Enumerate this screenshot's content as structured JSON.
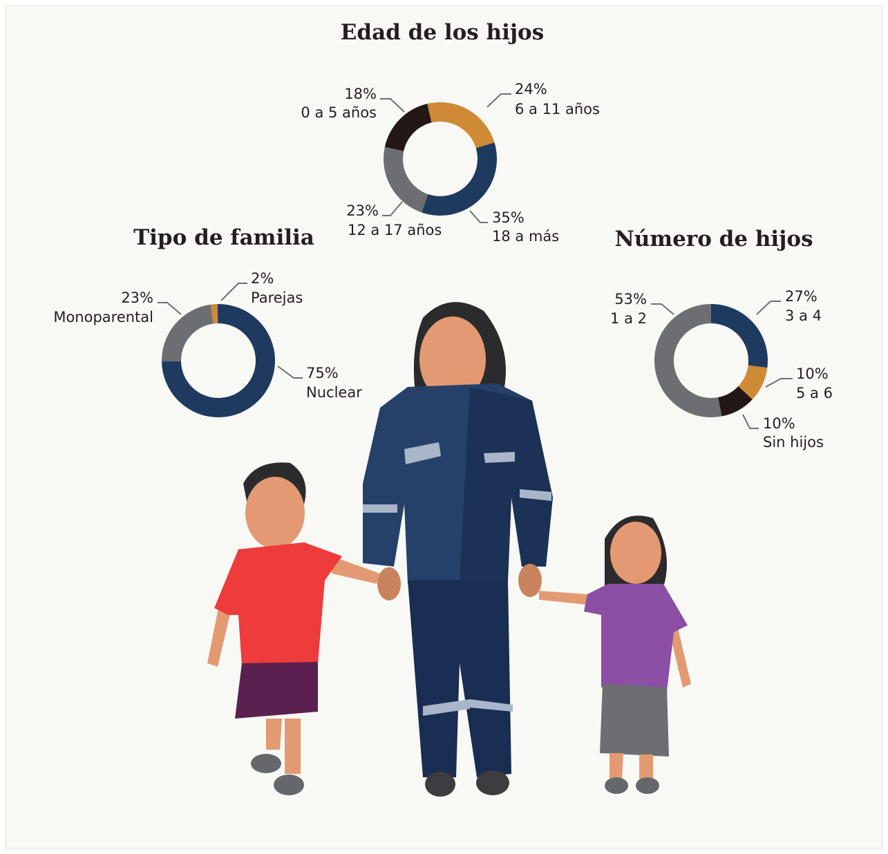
{
  "chart_data": [
    {
      "type": "pie",
      "title": "Edad de los hijos",
      "categories": [
        "0 a 5 años",
        "6 a 11 años",
        "18 a más",
        "12 a 17 años"
      ],
      "values": [
        18,
        24,
        35,
        23
      ],
      "value_labels": [
        "18%",
        "24%",
        "35%",
        "23%"
      ],
      "colors": [
        "#231815",
        "#cf8a35",
        "#1f3a5f",
        "#6d6e71"
      ]
    },
    {
      "type": "pie",
      "title": "Tipo de familia",
      "categories": [
        "Parejas",
        "Nuclear",
        "Monoparental"
      ],
      "values": [
        2,
        75,
        23
      ],
      "value_labels": [
        "2%",
        "75%",
        "23%"
      ],
      "colors": [
        "#cf8a35",
        "#1f3a5f",
        "#6d6e71"
      ]
    },
    {
      "type": "pie",
      "title": "Número de hijos",
      "categories": [
        "3 a 4",
        "5 a 6",
        "Sin hijos",
        "1 a 2"
      ],
      "values": [
        27,
        10,
        10,
        53
      ],
      "value_labels": [
        "27%",
        "10%",
        "10%",
        "53%"
      ],
      "colors": [
        "#1f3a5f",
        "#cf8a35",
        "#231815",
        "#6d6e71"
      ]
    }
  ]
}
